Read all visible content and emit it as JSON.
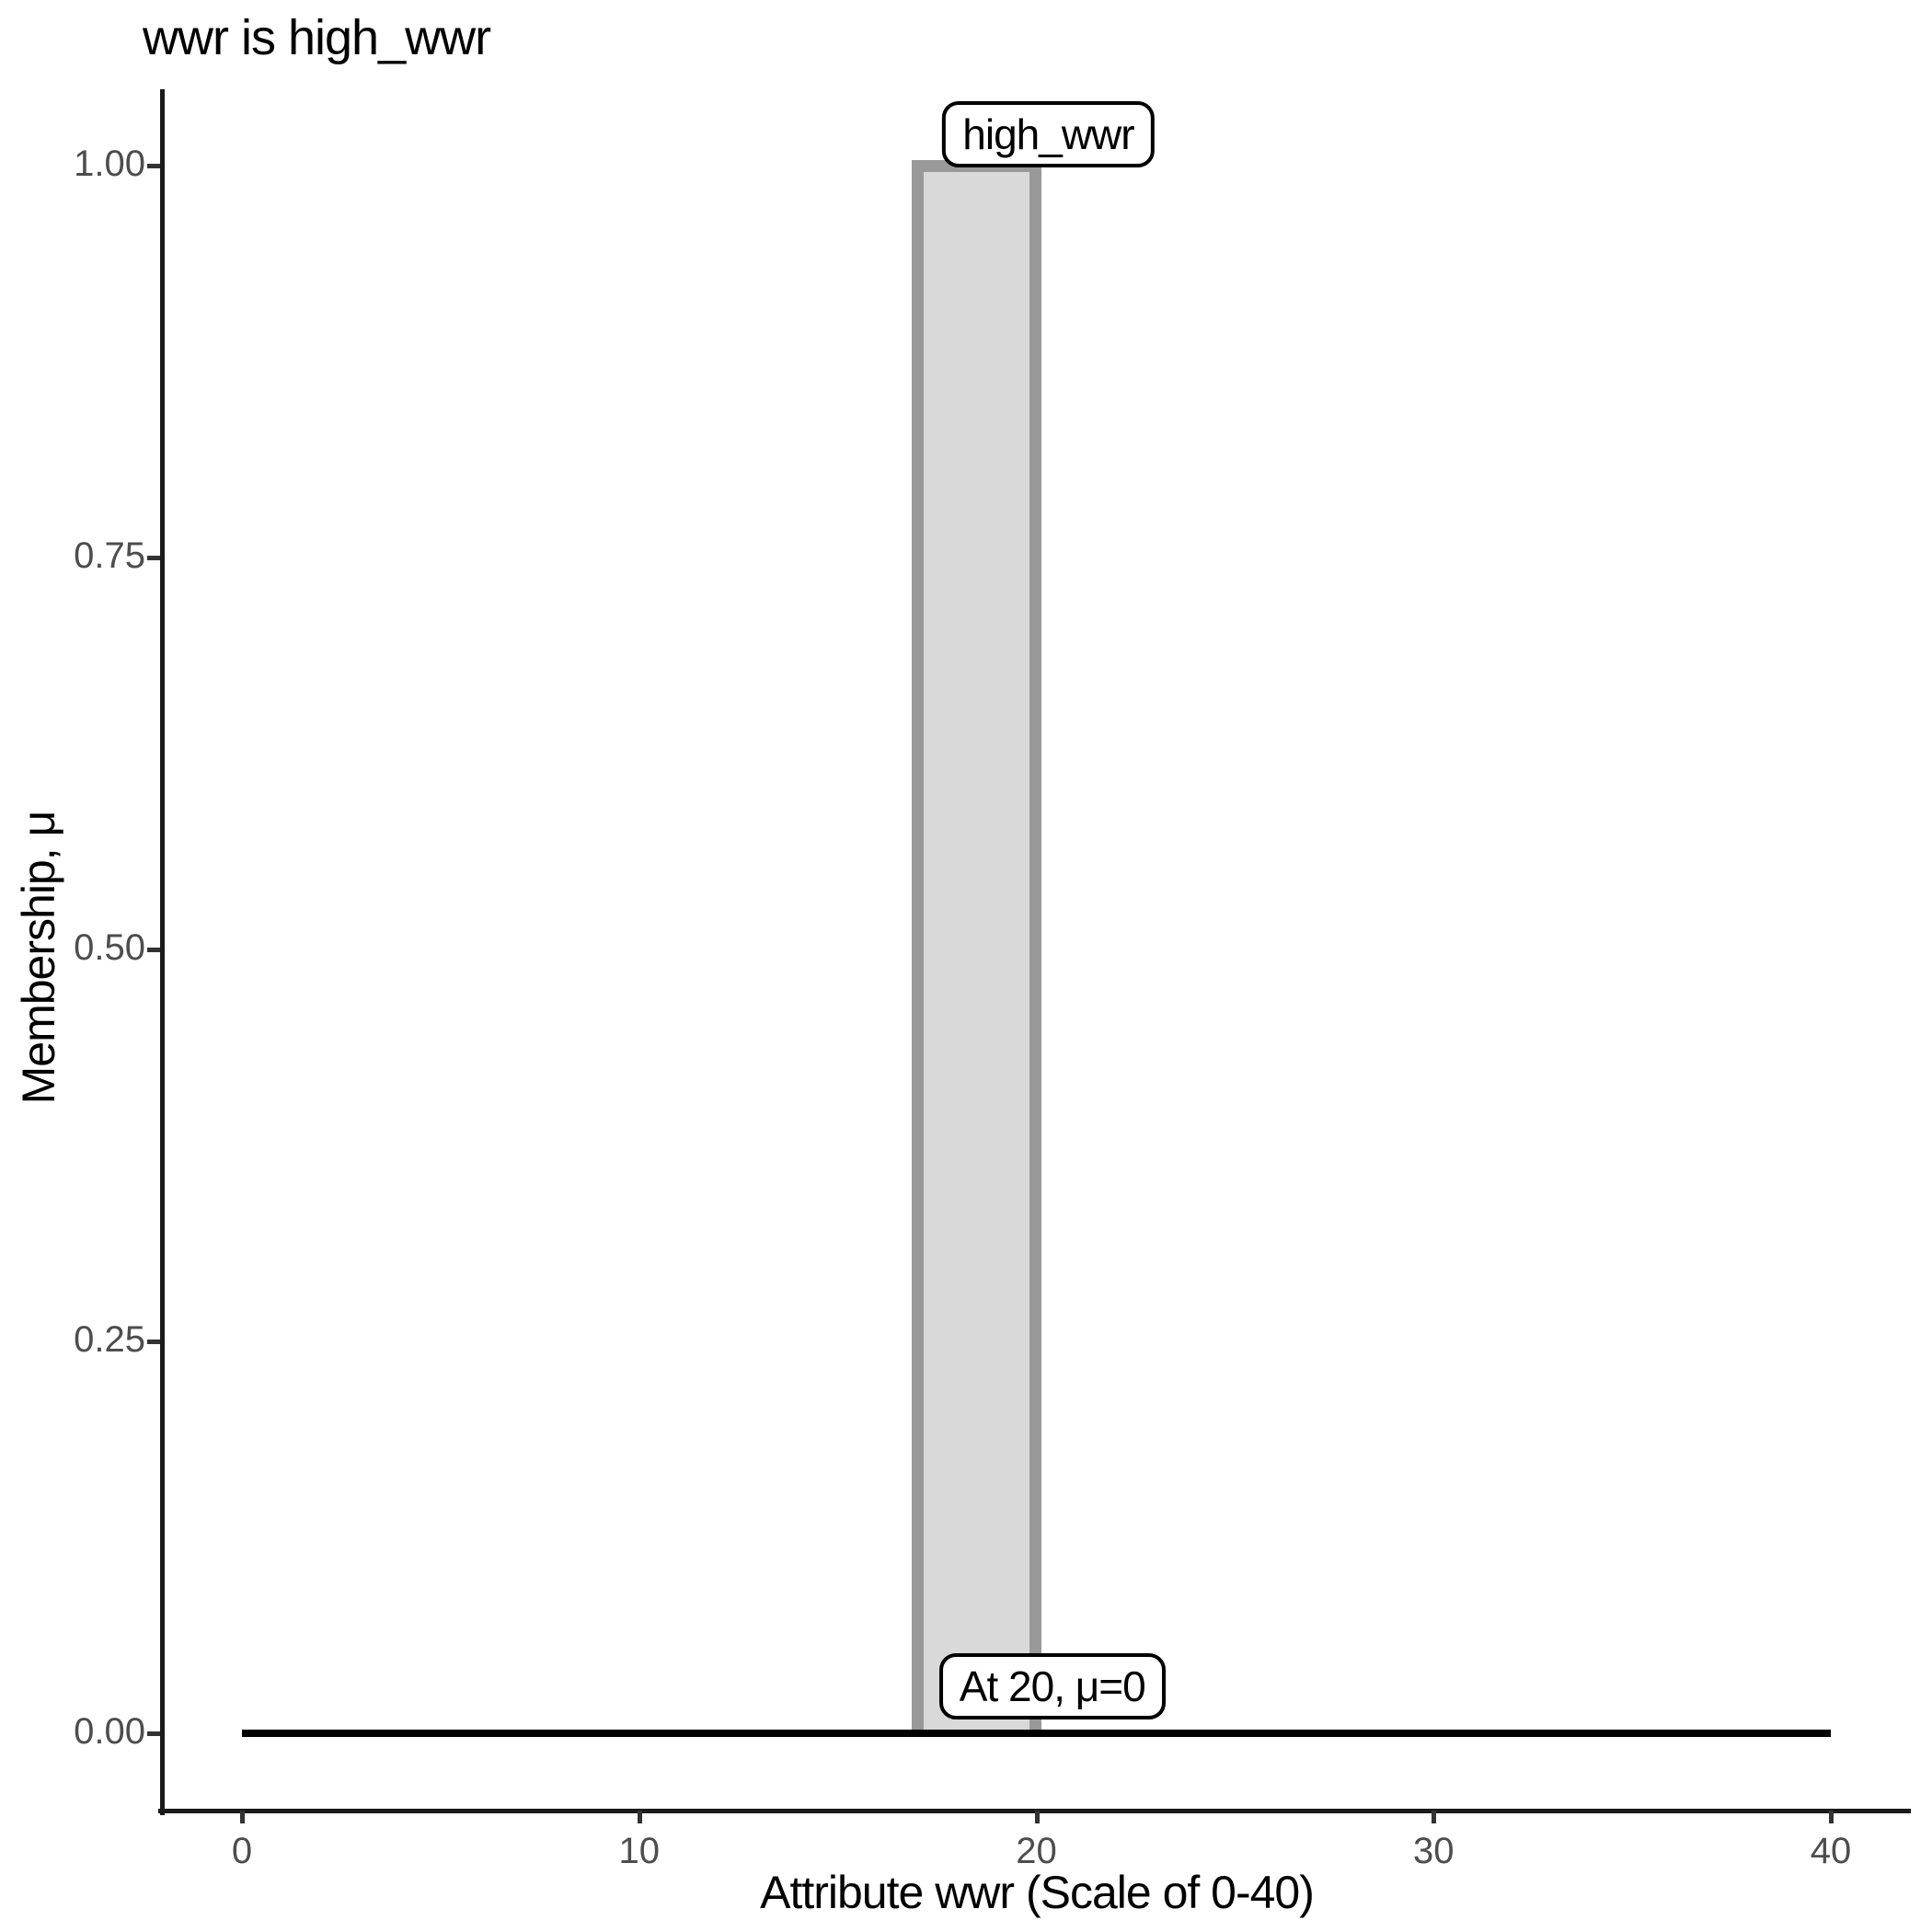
{
  "chart_data": {
    "type": "area",
    "title": "wwr is high_wwr",
    "xlabel": "Attribute wwr (Scale of 0-40)",
    "ylabel": "Membership, μ",
    "xlim": [
      0,
      40
    ],
    "ylim": [
      0,
      1
    ],
    "grid": "off",
    "legend": "none",
    "x_ticks": [
      {
        "value": 0,
        "label": "0"
      },
      {
        "value": 10,
        "label": "10"
      },
      {
        "value": 20,
        "label": "20"
      },
      {
        "value": 30,
        "label": "30"
      },
      {
        "value": 40,
        "label": "40"
      }
    ],
    "y_ticks": [
      {
        "value": 0.0,
        "label": "0.00"
      },
      {
        "value": 0.25,
        "label": "0.25"
      },
      {
        "value": 0.5,
        "label": "0.50"
      },
      {
        "value": 0.75,
        "label": "0.75"
      },
      {
        "value": 1.0,
        "label": "1.00"
      }
    ],
    "series": [
      {
        "name": "high_wwr membership polygon",
        "kind": "membership-polygon",
        "points": [
          [
            17,
            0
          ],
          [
            17,
            1
          ],
          [
            20,
            1
          ],
          [
            20,
            0
          ]
        ],
        "fill": "#d9d9d9",
        "stroke": "#999999"
      },
      {
        "name": "zero-membership baseline",
        "kind": "line",
        "points": [
          [
            0,
            0
          ],
          [
            40,
            0
          ]
        ],
        "stroke": "#000000"
      }
    ],
    "annotations": [
      {
        "id": "set-name",
        "label": "high_wwr",
        "x": 20.3,
        "y": 1.02
      },
      {
        "id": "point-note",
        "label": "At 20, μ=0",
        "x": 20.4,
        "y": 0.03
      }
    ],
    "colors": {
      "axis": "#1a1a1a",
      "tick": "#333333",
      "tick_label": "#4d4d4d",
      "text": "#000000",
      "background": "#ffffff"
    }
  }
}
